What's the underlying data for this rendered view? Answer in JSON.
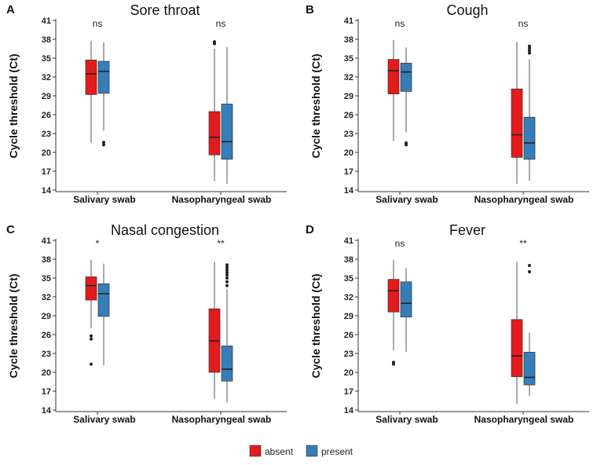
{
  "colors": {
    "absent": "#e41a1c",
    "present": "#377eb8",
    "median": "#222222",
    "whisker": "#555555",
    "outlier": "#222222"
  },
  "chart_data": [
    {
      "type": "boxplot",
      "panel": "A",
      "title": "Sore throat",
      "ylabel": "Cycle threshold (Ct)",
      "ylim": [
        14,
        41
      ],
      "yticks": [
        14,
        17,
        20,
        23,
        26,
        29,
        32,
        35,
        38,
        41
      ],
      "categories": [
        "Salivary swab",
        "Nasopharyngeal swab"
      ],
      "significance": [
        "ns",
        "ns"
      ],
      "series": [
        {
          "name": "absent",
          "boxes": [
            {
              "min": 21.5,
              "q1": 29.2,
              "median": 32.5,
              "q3": 34.7,
              "max": 37.8,
              "outliers": []
            },
            {
              "min": 15.4,
              "q1": 19.6,
              "median": 22.4,
              "q3": 26.5,
              "max": 36.5,
              "outliers": [
                37.3,
                37.6
              ]
            }
          ]
        },
        {
          "name": "present",
          "boxes": [
            {
              "min": 23.5,
              "q1": 29.4,
              "median": 32.9,
              "q3": 34.5,
              "max": 37.5,
              "outliers": [
                21.2,
                21.6
              ]
            },
            {
              "min": 15.0,
              "q1": 18.9,
              "median": 21.7,
              "q3": 27.7,
              "max": 36.8,
              "outliers": []
            }
          ]
        }
      ]
    },
    {
      "type": "boxplot",
      "panel": "B",
      "title": "Cough",
      "ylabel": "Cycle threshold (Ct)",
      "ylim": [
        14,
        41
      ],
      "yticks": [
        14,
        17,
        20,
        23,
        26,
        29,
        32,
        35,
        38,
        41
      ],
      "categories": [
        "Salivary swab",
        "Nasopharyngeal swab"
      ],
      "significance": [
        "ns",
        "ns"
      ],
      "series": [
        {
          "name": "absent",
          "boxes": [
            {
              "min": 21.8,
              "q1": 29.3,
              "median": 33.0,
              "q3": 34.8,
              "max": 37.9,
              "outliers": []
            },
            {
              "min": 15.0,
              "q1": 19.2,
              "median": 22.8,
              "q3": 30.1,
              "max": 37.6,
              "outliers": []
            }
          ]
        },
        {
          "name": "present",
          "boxes": [
            {
              "min": 23.2,
              "q1": 29.7,
              "median": 32.8,
              "q3": 34.2,
              "max": 36.7,
              "outliers": [
                21.2,
                21.5
              ]
            },
            {
              "min": 15.5,
              "q1": 18.9,
              "median": 21.5,
              "q3": 25.6,
              "max": 34.8,
              "outliers": [
                35.8,
                36.2,
                36.6,
                36.9
              ]
            }
          ]
        }
      ]
    },
    {
      "type": "boxplot",
      "panel": "C",
      "title": "Nasal congestion",
      "ylabel": "Cycle threshold (Ct)",
      "ylim": [
        14,
        41
      ],
      "yticks": [
        14,
        17,
        20,
        23,
        26,
        29,
        32,
        35,
        38,
        41
      ],
      "categories": [
        "Salivary swab",
        "Nasopharyngeal swab"
      ],
      "significance": [
        "*",
        "**"
      ],
      "series": [
        {
          "name": "absent",
          "boxes": [
            {
              "min": 27.0,
              "q1": 31.5,
              "median": 33.8,
              "q3": 35.2,
              "max": 37.9,
              "outliers": [
                21.3,
                25.3,
                25.8
              ]
            },
            {
              "min": 15.8,
              "q1": 20.0,
              "median": 25.0,
              "q3": 30.1,
              "max": 37.6,
              "outliers": []
            }
          ]
        },
        {
          "name": "present",
          "boxes": [
            {
              "min": 21.1,
              "q1": 28.9,
              "median": 32.5,
              "q3": 34.1,
              "max": 37.3,
              "outliers": []
            },
            {
              "min": 15.2,
              "q1": 18.6,
              "median": 20.5,
              "q3": 24.2,
              "max": 33.2,
              "outliers": [
                33.8,
                34.4,
                35.0,
                35.5,
                35.9,
                36.3,
                36.7,
                37.1
              ]
            }
          ]
        }
      ]
    },
    {
      "type": "boxplot",
      "panel": "D",
      "title": "Fever",
      "ylabel": "Cycle threshold (Ct)",
      "ylim": [
        14,
        41
      ],
      "yticks": [
        14,
        17,
        20,
        23,
        26,
        29,
        32,
        35,
        38,
        41
      ],
      "categories": [
        "Salivary swab",
        "Nasopharyngeal swab"
      ],
      "significance": [
        "ns",
        "**"
      ],
      "series": [
        {
          "name": "absent",
          "boxes": [
            {
              "min": 23.5,
              "q1": 29.6,
              "median": 33.0,
              "q3": 34.8,
              "max": 37.9,
              "outliers": [
                21.3,
                21.6
              ]
            },
            {
              "min": 15.0,
              "q1": 19.3,
              "median": 22.6,
              "q3": 28.4,
              "max": 37.6,
              "outliers": []
            }
          ]
        },
        {
          "name": "present",
          "boxes": [
            {
              "min": 23.3,
              "q1": 28.8,
              "median": 31.0,
              "q3": 34.4,
              "max": 36.6,
              "outliers": []
            },
            {
              "min": 16.2,
              "q1": 18.0,
              "median": 19.2,
              "q3": 23.2,
              "max": 26.3,
              "outliers": [
                36.0,
                37.0
              ]
            }
          ]
        }
      ]
    }
  ],
  "legend": {
    "items": [
      {
        "label": "absent",
        "color_key": "absent"
      },
      {
        "label": "present",
        "color_key": "present"
      }
    ]
  }
}
